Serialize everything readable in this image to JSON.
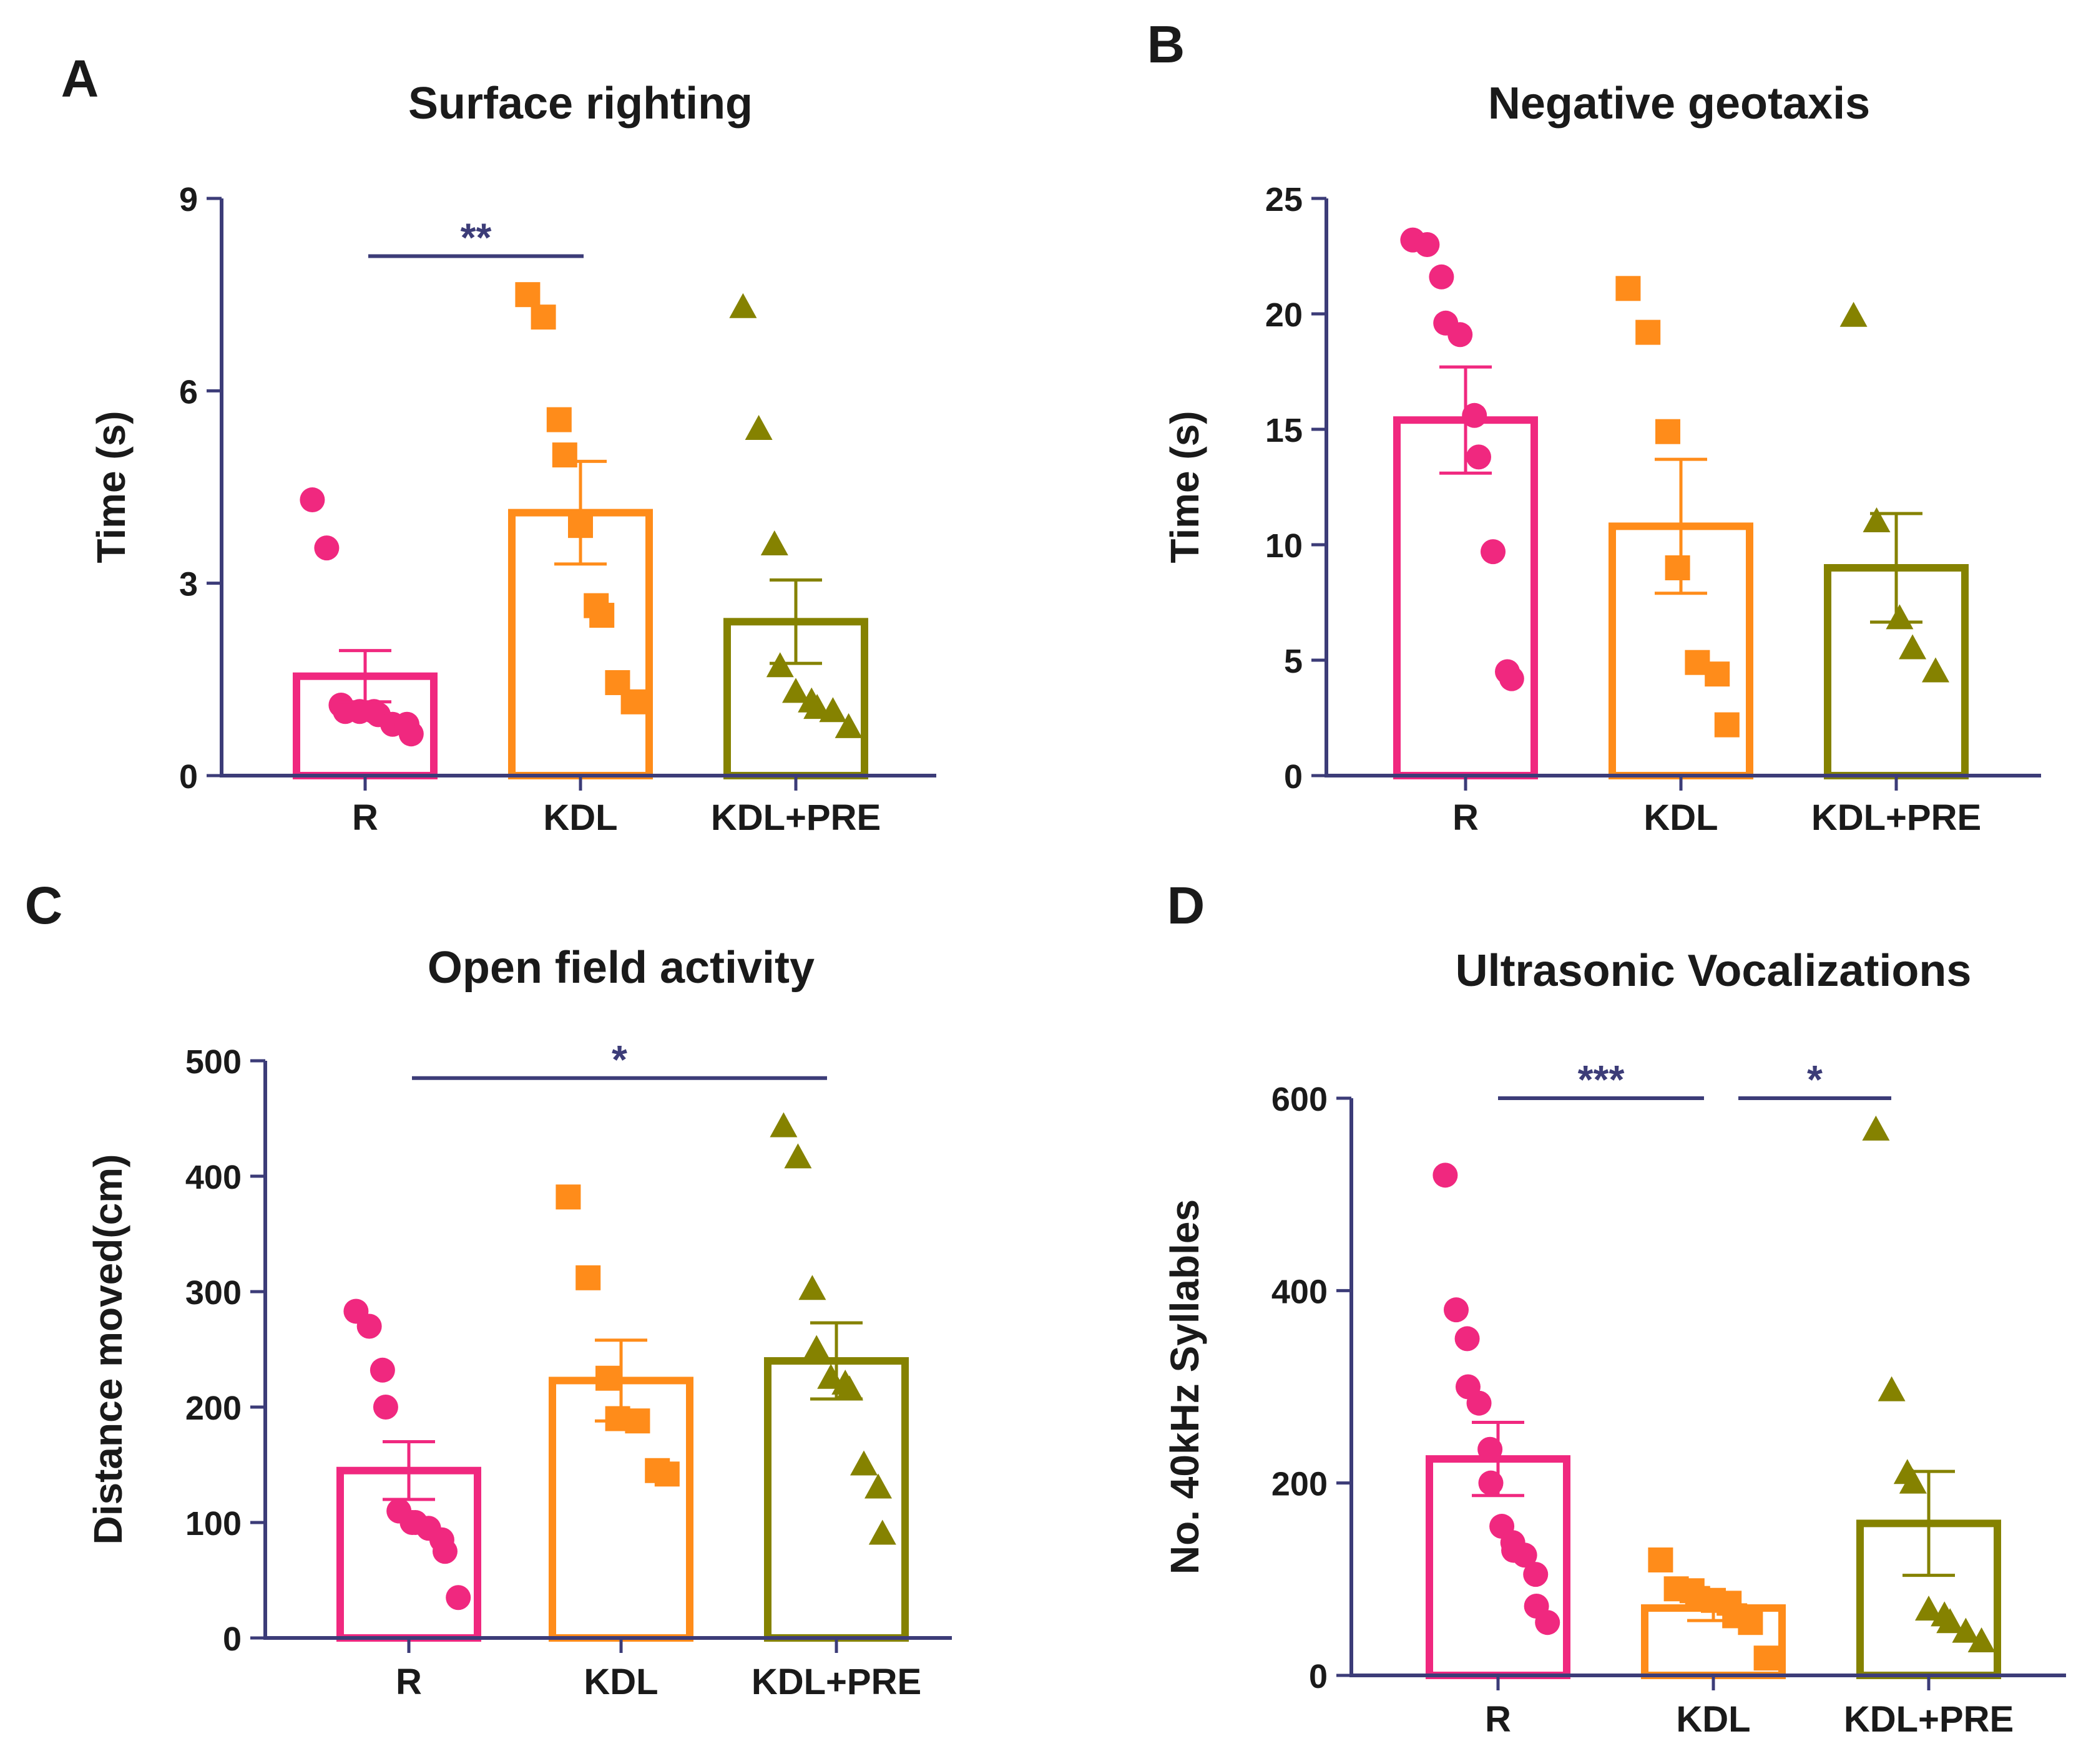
{
  "colors": {
    "axis": "#3c3c78",
    "text": "#1a1a1a",
    "R": "#f0287f",
    "KDL": "#ff8c1a",
    "KDL+PRE": "#858200"
  },
  "chart_data": [
    {
      "panel": "A",
      "type": "bar",
      "title": "Surface righting",
      "ylabel": "Time (s)",
      "xlabel": "",
      "ylim": [
        0,
        9
      ],
      "yticks": [
        0,
        3,
        6,
        9
      ],
      "categories": [
        "R",
        "KDL",
        "KDL+PRE"
      ],
      "means": [
        1.55,
        4.1,
        2.4
      ],
      "sem": [
        0.4,
        0.8,
        0.65
      ],
      "markers": [
        "circle",
        "square",
        "triangle"
      ],
      "points": [
        [
          4.3,
          3.55,
          1.1,
          1.0,
          1.0,
          1.0,
          0.95,
          0.8,
          0.8,
          0.65
        ],
        [
          7.5,
          7.15,
          5.55,
          5.0,
          3.9,
          2.65,
          2.5,
          1.45,
          1.15
        ],
        [
          7.3,
          5.4,
          3.6,
          1.7,
          1.3,
          1.15,
          1.05,
          1.0,
          0.75
        ]
      ],
      "significance": [
        {
          "from": 0,
          "to": 1,
          "label": "**",
          "y": 8.1
        }
      ]
    },
    {
      "panel": "B",
      "type": "bar",
      "title": "Negative geotaxis",
      "ylabel": "Time (s)",
      "xlabel": "",
      "ylim": [
        0,
        25
      ],
      "yticks": [
        0,
        5,
        10,
        15,
        20,
        25
      ],
      "categories": [
        "R",
        "KDL",
        "KDL+PRE"
      ],
      "means": [
        15.4,
        10.8,
        9.0
      ],
      "sem": [
        2.3,
        2.9,
        2.35
      ],
      "markers": [
        "circle",
        "square",
        "triangle"
      ],
      "points": [
        [
          23.2,
          23.0,
          21.6,
          19.6,
          19.1,
          15.6,
          13.8,
          9.7,
          4.5,
          4.2
        ],
        [
          21.1,
          19.2,
          14.9,
          9.0,
          4.9,
          4.4,
          2.2
        ],
        [
          19.9,
          11.0,
          6.8,
          5.5,
          4.5
        ]
      ],
      "significance": []
    },
    {
      "panel": "C",
      "type": "bar",
      "title": "Open field activity",
      "ylabel": "Distance moved(cm)",
      "xlabel": "",
      "ylim": [
        0,
        500
      ],
      "yticks": [
        0,
        100,
        200,
        300,
        400,
        500
      ],
      "categories": [
        "R",
        "KDL",
        "KDL+PRE"
      ],
      "means": [
        145,
        223,
        240
      ],
      "sem": [
        25,
        35,
        33
      ],
      "markers": [
        "circle",
        "square",
        "triangle"
      ],
      "points": [
        [
          283,
          270,
          232,
          200,
          110,
          100,
          100,
          95,
          85,
          75,
          35
        ],
        [
          382,
          312,
          225,
          190,
          188,
          145,
          142
        ],
        [
          443,
          416,
          302,
          250,
          225,
          220,
          215,
          150,
          130,
          90
        ]
      ],
      "significance": [
        {
          "from": 0,
          "to": 2,
          "label": "*",
          "y": 485
        }
      ]
    },
    {
      "panel": "D",
      "type": "bar",
      "title": "Ultrasonic Vocalizations",
      "ylabel": "No. 40kHz Syllables",
      "xlabel": "",
      "ylim": [
        0,
        600
      ],
      "yticks": [
        0,
        200,
        400,
        600
      ],
      "categories": [
        "R",
        "KDL",
        "KDL+PRE"
      ],
      "means": [
        225,
        70,
        158
      ],
      "sem": [
        38,
        13,
        54
      ],
      "markers": [
        "circle",
        "square",
        "triangle"
      ],
      "points": [
        [
          520,
          380,
          350,
          300,
          283,
          235,
          200,
          155,
          138,
          130,
          125,
          105,
          72,
          55
        ],
        [
          120,
          90,
          88,
          80,
          78,
          75,
          62,
          55,
          18
        ],
        [
          567,
          296,
          210,
          200,
          68,
          62,
          55,
          45,
          35
        ]
      ],
      "significance": [
        {
          "from": 0,
          "to": 1,
          "label": "***",
          "y": 600
        },
        {
          "from": 1,
          "to": 2,
          "label": "*",
          "y": 600
        }
      ]
    }
  ]
}
